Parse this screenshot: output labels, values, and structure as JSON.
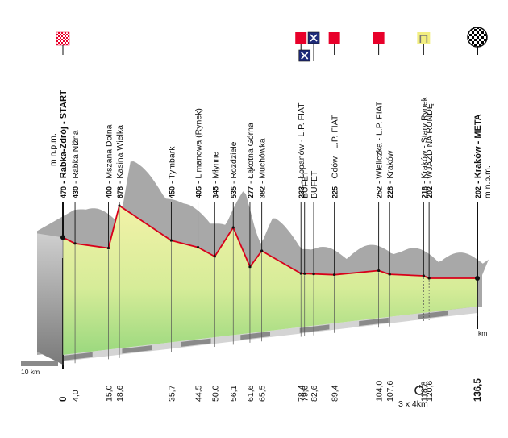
{
  "chart_data": {
    "type": "area",
    "title": "",
    "xlabel": "km",
    "ylabel": "m n.p.m.",
    "xlim": [
      0,
      136.5
    ],
    "distance_scale_label": "10 km",
    "loop_note": "3 x 4km",
    "points": [
      {
        "km": "0",
        "alt": "470",
        "name": "Rabka-Zdrój - START",
        "bold": true,
        "x": 0,
        "y": 470,
        "icon": "checker-flag-icon",
        "icon_color": "#e8002a"
      },
      {
        "km": "4,0",
        "alt": "430",
        "name": "Rabka Niżna",
        "x": 4.0,
        "y": 430
      },
      {
        "km": "15,0",
        "alt": "400",
        "name": "Mszana Dolna",
        "x": 15.0,
        "y": 400
      },
      {
        "km": "18,6",
        "alt": "678",
        "name": "Kasina Wielka",
        "x": 18.6,
        "y": 678
      },
      {
        "km": "35,7",
        "alt": "450",
        "name": "Tymbark",
        "x": 35.7,
        "y": 450
      },
      {
        "km": "44,5",
        "alt": "405",
        "name": "Limanowa (Rynek)",
        "x": 44.5,
        "y": 405
      },
      {
        "km": "50,0",
        "alt": "345",
        "name": "Młynne",
        "x": 50.0,
        "y": 345
      },
      {
        "km": "56,1",
        "alt": "535",
        "name": "Rozdziele",
        "x": 56.1,
        "y": 535
      },
      {
        "km": "61,6",
        "alt": "277",
        "name": "Łąkotna Górna",
        "x": 61.6,
        "y": 277
      },
      {
        "km": "65,5",
        "alt": "382",
        "name": "Muchówka",
        "x": 65.5,
        "y": 382
      },
      {
        "km": "78,4",
        "alt": "233",
        "name": "Łopanów - L.P. FIAT",
        "x": 78.4,
        "y": 233,
        "icon": "red-square-icon",
        "icon_color": "#e8002a"
      },
      {
        "km": "79,6",
        "alt": "",
        "name": "BUFET",
        "x": 79.6,
        "icon": "feed-zone-icon",
        "icon_color": "#1e2a78"
      },
      {
        "km": "82,6",
        "alt": "",
        "name": "BUFET",
        "x": 82.6,
        "icon": "feed-zone-icon",
        "icon_color": "#1e2a78"
      },
      {
        "km": "89,4",
        "alt": "225",
        "name": "Gdów - L.P. FIAT",
        "x": 89.4,
        "y": 225,
        "icon": "red-square-icon",
        "icon_color": "#e8002a"
      },
      {
        "km": "104,0",
        "alt": "252",
        "name": "Wieliczka - L.P. FIAT",
        "x": 104.0,
        "y": 252,
        "icon": "red-square-icon",
        "icon_color": "#e8002a"
      },
      {
        "km": "107,6",
        "alt": "228",
        "name": "Kraków",
        "x": 107.6,
        "y": 228
      },
      {
        "km": "118,8",
        "alt": "218",
        "name": "Kraków - Stary Rynek",
        "x": 118.8,
        "y": 218,
        "icon": "loop-gate-icon",
        "icon_color": "#f2ee80"
      },
      {
        "km": "120,6",
        "alt": "202",
        "name": "WJAZD NA RUNDĘ",
        "x": 120.6,
        "y": 202
      },
      {
        "km": "136,5",
        "alt": "202",
        "name": "Kraków - META",
        "bold": true,
        "x": 136.5,
        "y": 202,
        "icon": "finish-checker-icon",
        "icon_color": "#000000"
      }
    ],
    "header_unit": "m n.p.m.",
    "footer_unit": "m n.p.m."
  },
  "colors": {
    "profile_line": "#d8001a",
    "terrain": "#a8a8a8",
    "fill_top": "#f2f2a8",
    "fill_bottom": "#9ad87e",
    "road": "#8a8a8a"
  }
}
